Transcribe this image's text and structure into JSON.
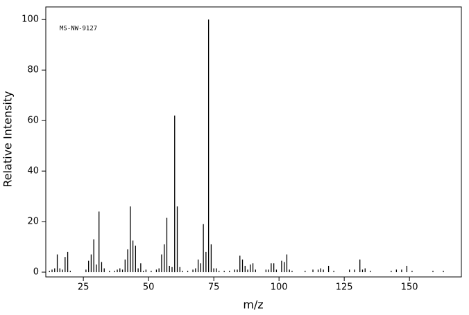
{
  "chart_data": {
    "type": "stem",
    "annotation": "MS-NW-9127",
    "x_label": "m/z",
    "y_label": "Relative Intensity",
    "color": "#000000",
    "x": [
      12,
      13,
      14,
      15,
      16,
      17,
      18,
      19,
      20,
      26,
      27,
      28,
      29,
      30,
      31,
      32,
      33,
      35,
      37,
      38,
      39,
      40,
      41,
      42,
      43,
      44,
      45,
      46,
      47,
      48,
      49,
      51,
      53,
      54,
      55,
      56,
      57,
      58,
      59,
      60,
      61,
      62,
      63,
      65,
      67,
      68,
      69,
      70,
      71,
      72,
      73,
      74,
      75,
      76,
      77,
      79,
      81,
      83,
      84,
      85,
      86,
      87,
      88,
      89,
      90,
      91,
      95,
      96,
      97,
      98,
      99,
      101,
      102,
      103,
      104,
      105,
      110,
      113,
      115,
      116,
      117,
      119,
      121,
      127,
      129,
      131,
      132,
      133,
      135,
      143,
      145,
      147,
      149,
      151,
      159,
      163
    ],
    "values": [
      0.5,
      1,
      1.5,
      7,
      1.5,
      1,
      6,
      8,
      0.5,
      1,
      4.5,
      7,
      13,
      3,
      24,
      4,
      1.5,
      0.5,
      0.5,
      1,
      1.5,
      1,
      5,
      9,
      26,
      12.5,
      10.5,
      1.5,
      3.5,
      0.5,
      1,
      0.5,
      1,
      1.5,
      7,
      11,
      21.5,
      2.5,
      2,
      62,
      26,
      2,
      0.5,
      0.5,
      1,
      1.5,
      5,
      3.5,
      19,
      8,
      100,
      11,
      1.5,
      1.5,
      0.5,
      0.5,
      0.5,
      1,
      1,
      6.5,
      5,
      2.5,
      1,
      3,
      3.5,
      1,
      1,
      1,
      3.5,
      3.5,
      1,
      4.5,
      4,
      7,
      1,
      0.5,
      0.5,
      1,
      1,
      1.5,
      1,
      2.5,
      0.5,
      1,
      1,
      5,
      1,
      1.5,
      0.5,
      0.5,
      1,
      1,
      2.5,
      0.5,
      0.5,
      0.5
    ],
    "xlim": [
      10.6,
      169.9
    ],
    "ylim": [
      -1.9,
      105
    ],
    "xticks": [
      25,
      50,
      75,
      100,
      125,
      150
    ],
    "yticks": [
      0,
      20,
      40,
      60,
      80,
      100
    ]
  }
}
